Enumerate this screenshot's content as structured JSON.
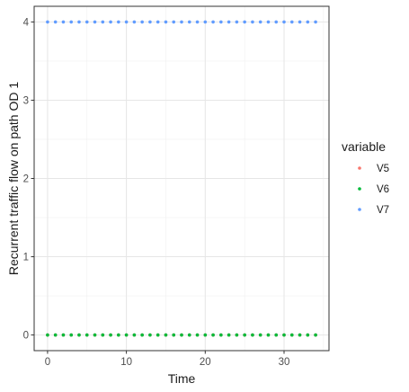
{
  "chart_data": {
    "type": "scatter",
    "xlabel": "Time",
    "ylabel": "Recurrent traffic flow on path OD 1",
    "xlim": [
      -1.7,
      35.7
    ],
    "ylim": [
      -0.2,
      4.2
    ],
    "x_ticks": [
      0,
      10,
      20,
      30
    ],
    "y_ticks": [
      0,
      1,
      2,
      3,
      4
    ],
    "grid": true,
    "legend": {
      "title": "variable",
      "position": "right"
    },
    "x": [
      0,
      1,
      2,
      3,
      4,
      5,
      6,
      7,
      8,
      9,
      10,
      11,
      12,
      13,
      14,
      15,
      16,
      17,
      18,
      19,
      20,
      21,
      22,
      23,
      24,
      25,
      26,
      27,
      28,
      29,
      30,
      31,
      32,
      33,
      34
    ],
    "series": [
      {
        "name": "V5",
        "color": "#F8766D",
        "values": [
          0,
          0,
          0,
          0,
          0,
          0,
          0,
          0,
          0,
          0,
          0,
          0,
          0,
          0,
          0,
          0,
          0,
          0,
          0,
          0,
          0,
          0,
          0,
          0,
          0,
          0,
          0,
          0,
          0,
          0,
          0,
          0,
          0,
          0,
          0
        ]
      },
      {
        "name": "V6",
        "color": "#00BA38",
        "values": [
          0,
          0,
          0,
          0,
          0,
          0,
          0,
          0,
          0,
          0,
          0,
          0,
          0,
          0,
          0,
          0,
          0,
          0,
          0,
          0,
          0,
          0,
          0,
          0,
          0,
          0,
          0,
          0,
          0,
          0,
          0,
          0,
          0,
          0,
          0
        ]
      },
      {
        "name": "V7",
        "color": "#619CFF",
        "values": [
          4,
          4,
          4,
          4,
          4,
          4,
          4,
          4,
          4,
          4,
          4,
          4,
          4,
          4,
          4,
          4,
          4,
          4,
          4,
          4,
          4,
          4,
          4,
          4,
          4,
          4,
          4,
          4,
          4,
          4,
          4,
          4,
          4,
          4,
          4
        ]
      }
    ]
  }
}
